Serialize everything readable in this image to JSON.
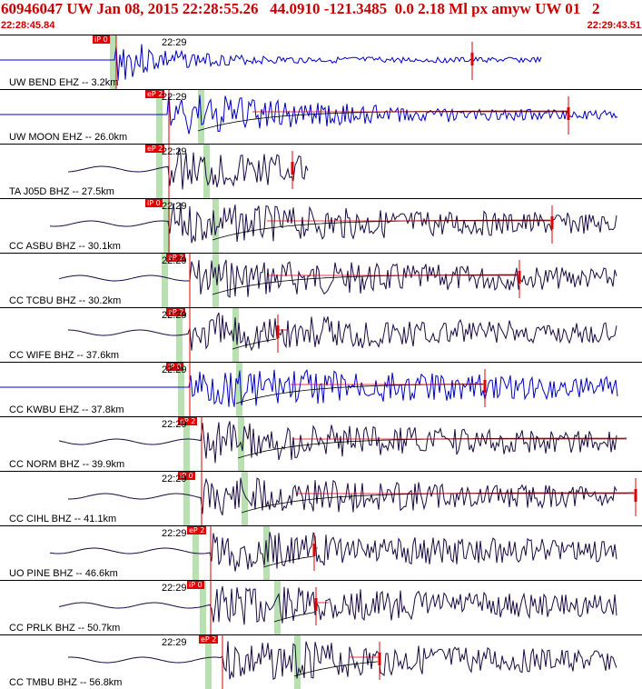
{
  "header": {
    "title": "60946047 UW Jan 08, 2015 22:28:55.26   44.0910 -121.3485  0.0 2.18 Ml px amyw UW 01   2",
    "start_time": "22:28:45.84",
    "end_time": "22:29:43.51"
  },
  "colors": {
    "accent": "#c80000",
    "pick": "#e00000",
    "window": "#b8e0b0",
    "trace_blue": "#0000cc",
    "trace_dark": "#1a0a40"
  },
  "traces": [
    {
      "label": "UW BEND EHZ -- 3.2km",
      "time": "22:29",
      "pick": "iP 0",
      "color": "blue",
      "kind": "short"
    },
    {
      "label": "UW MOON EHZ -- 26.0km",
      "time": "22:29",
      "pick": "eP 2",
      "color": "blue",
      "kind": "decay"
    },
    {
      "label": "TA J05D BHZ -- 27.5km",
      "time": "22:29",
      "pick": "eP 2",
      "color": "dark",
      "kind": "short"
    },
    {
      "label": "CC ASBU BHZ -- 30.1km",
      "time": "22:29",
      "pick": "iP 0",
      "color": "dark",
      "kind": "decay"
    },
    {
      "label": "CC TCBU BHZ -- 30.2km",
      "time": "22:29",
      "pick": "eP 2",
      "color": "dark",
      "kind": "decay"
    },
    {
      "label": "CC WIFE BHZ -- 37.6km",
      "time": "22:29",
      "pick": "eP 2",
      "color": "dark",
      "kind": "mark"
    },
    {
      "label": "CC KWBU EHZ -- 37.8km",
      "time": "22:29",
      "pick": "iP 0",
      "color": "blue",
      "kind": "decay"
    },
    {
      "label": "CC NORM BHZ -- 39.9km",
      "time": "22:29",
      "pick": "eP 2",
      "color": "dark",
      "kind": "decay"
    },
    {
      "label": "CC CIHL BHZ -- 41.1km",
      "time": "22:29",
      "pick": "iP 0",
      "color": "dark",
      "kind": "decay"
    },
    {
      "label": "UO PINE BHZ -- 46.6km",
      "time": "22:29",
      "pick": "eP 2",
      "color": "dark",
      "kind": "mark"
    },
    {
      "label": "CC PRLK BHZ -- 50.7km",
      "time": "22:29",
      "pick": "iP 0",
      "color": "dark",
      "kind": "mark"
    },
    {
      "label": "CC TMBU BHZ -- 56.8km",
      "time": "22:29",
      "pick": "eP 2",
      "color": "dark",
      "kind": "mark"
    }
  ]
}
